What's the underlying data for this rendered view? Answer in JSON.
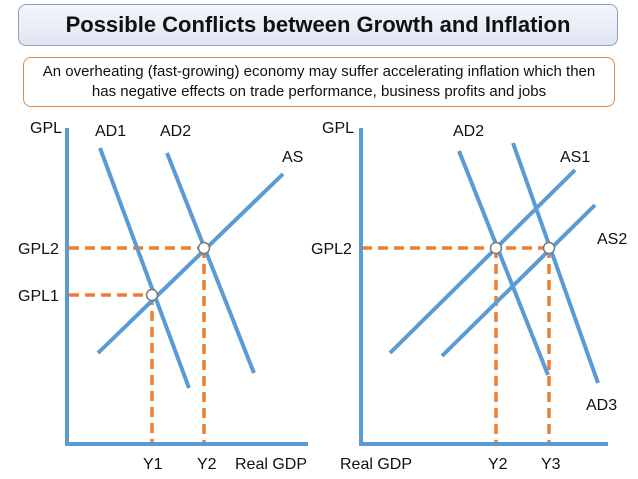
{
  "title": "Possible Conflicts between Growth and Inflation",
  "subtitle": "An overheating (fast-growing) economy may suffer accelerating inflation which then has negative effects on trade performance, business profits and jobs",
  "colors": {
    "curve": "#5b9bd5",
    "guide": "#ed7d31",
    "axis": "#5b9bd5"
  },
  "left_diagram": {
    "y_axis_label": "GPL",
    "x_axis_label": "Real GDP",
    "curves": [
      "AD1",
      "AD2",
      "AS"
    ],
    "price_levels": [
      "GPL2",
      "GPL1"
    ],
    "outputs": [
      "Y1",
      "Y2"
    ]
  },
  "right_diagram": {
    "y_axis_label": "GPL",
    "x_axis_label": "Real GDP",
    "curves": [
      "AD2",
      "AS1",
      "AS2",
      "AD3"
    ],
    "price_levels": [
      "GPL2"
    ],
    "outputs": [
      "Y2",
      "Y3"
    ]
  }
}
